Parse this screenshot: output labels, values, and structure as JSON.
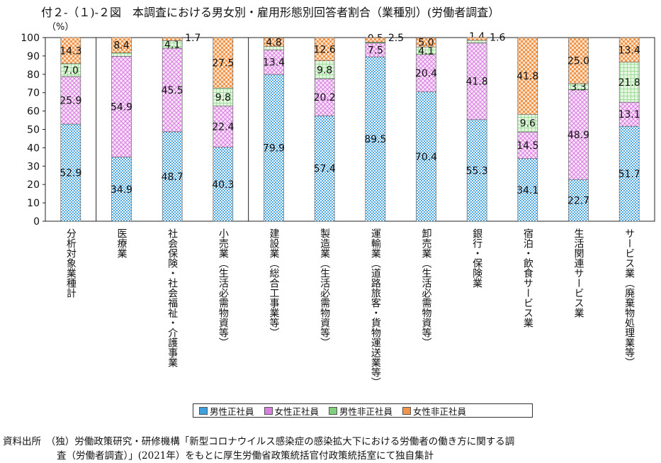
{
  "title": "付２-（１)-２図　本調査における男女別・雇用形態別回答者割合（業種別）(労働者調査）",
  "unit": "（%）",
  "source": {
    "line1": "資料出所　（独）労働政策研究・研修機構「新型コロナウイルス感染症の感染拡大下における労働者の働き方に関する調",
    "line2": "査（労働者調査）」(2021年）をもとに厚生労働省政策統括官付政策統括室にて独自集計"
  },
  "colors": {
    "male_regular": "#3ea0dd",
    "female_regular": "#d880e0",
    "male_nonregular": "#7fd07a",
    "female_nonregular": "#f0954a"
  },
  "chart_data": {
    "type": "bar",
    "stacked": true,
    "ylim": [
      0,
      100
    ],
    "yticks": [
      "0",
      "10",
      "20",
      "30",
      "40",
      "50",
      "60",
      "70",
      "80",
      "90",
      "100"
    ],
    "categories": [
      "分析対象業種計",
      "医療業",
      "社会保険・社会福祉・介護事業",
      "小売業（生活必需物資等）",
      "建設業（総合工事業等）",
      "製造業（生活必需物資等）",
      "運輸業（道路旅客・貨物運送業等）",
      "卸売業（生活必需物資等）",
      "銀行・保険業",
      "宿泊・飲食サービス業",
      "生活関連サービス業",
      "サービス業（廃棄物処理業等）"
    ],
    "series": [
      {
        "name": "男性正社員",
        "values": [
          52.9,
          34.9,
          48.7,
          40.3,
          79.9,
          57.4,
          89.5,
          70.4,
          55.3,
          34.1,
          22.7,
          51.7
        ]
      },
      {
        "name": "女性正社員",
        "values": [
          25.9,
          54.9,
          45.5,
          22.4,
          13.4,
          20.2,
          7.5,
          20.4,
          41.8,
          14.5,
          48.9,
          13.1
        ]
      },
      {
        "name": "男性非正社員",
        "values": [
          7.0,
          1.9,
          4.1,
          9.8,
          1.8,
          9.8,
          0.5,
          4.1,
          1.4,
          9.6,
          3.3,
          21.8
        ]
      },
      {
        "name": "女性非正社員",
        "values": [
          14.3,
          8.4,
          1.7,
          27.5,
          4.8,
          12.6,
          2.5,
          5.0,
          1.6,
          41.8,
          25.0,
          13.4
        ]
      }
    ]
  }
}
